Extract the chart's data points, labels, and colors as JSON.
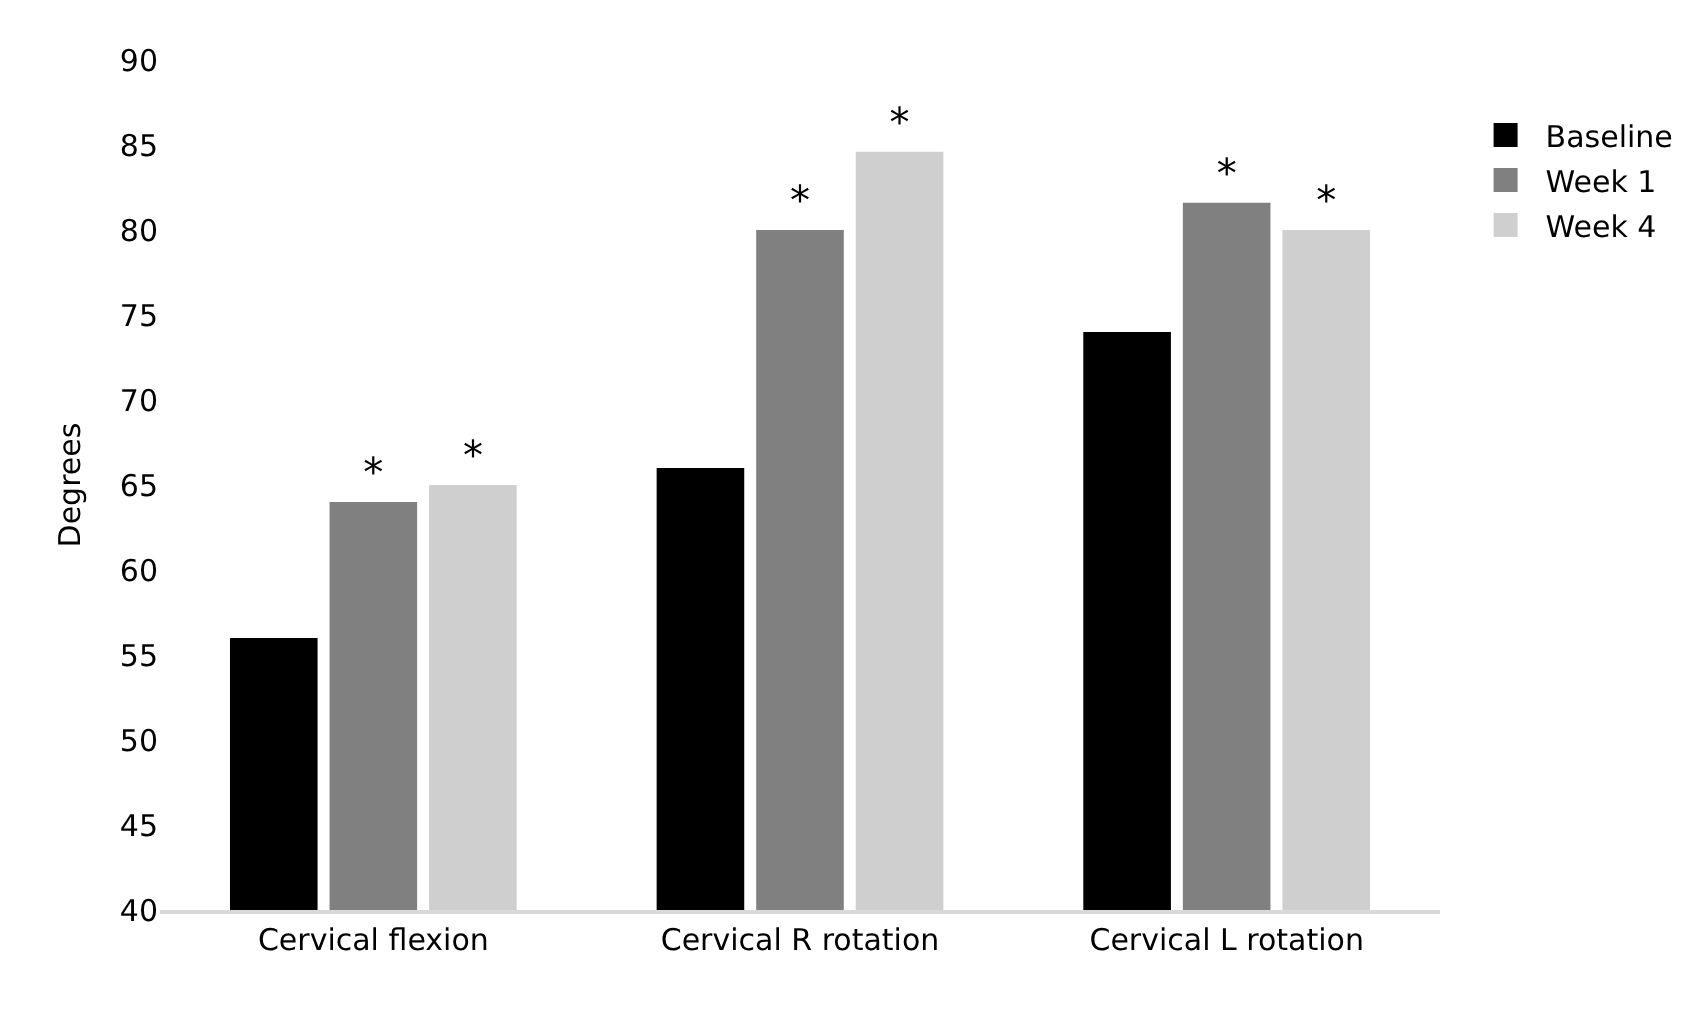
{
  "chart_data": {
    "type": "bar",
    "ylabel": "Degrees",
    "categories": [
      "Cervical flexion",
      "Cervical R rotation",
      "Cervical L rotation"
    ],
    "series": [
      {
        "name": "Baseline",
        "color": "#000000",
        "values": [
          56,
          66,
          74
        ],
        "value_labels": [
          null,
          null,
          null
        ]
      },
      {
        "name": "Week 1",
        "color": "#808080",
        "values": [
          64,
          80,
          81.6
        ],
        "value_labels": [
          "*",
          "*",
          "*"
        ]
      },
      {
        "name": "Week 4",
        "color": "#d0cfd0",
        "values": [
          65,
          84.6,
          80
        ],
        "value_labels": [
          "*",
          "*",
          "*"
        ]
      }
    ],
    "ylim": [
      40,
      90
    ],
    "yticks": [
      40,
      45,
      50,
      55,
      60,
      65,
      70,
      75,
      80,
      85,
      90
    ],
    "grid": false,
    "legend": "right"
  }
}
